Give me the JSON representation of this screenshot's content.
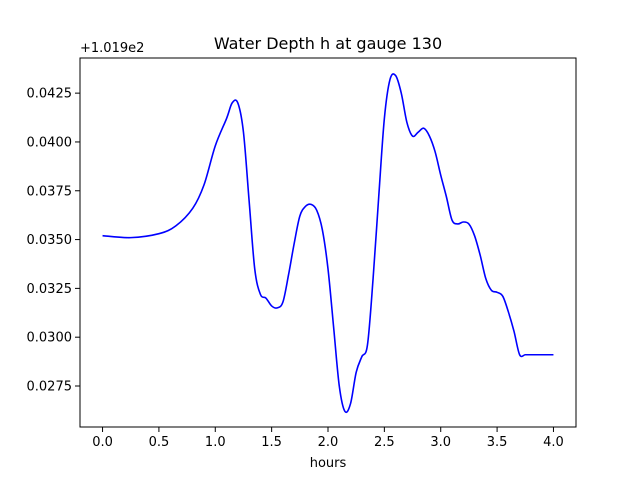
{
  "chart_data": {
    "type": "line",
    "title": "Water Depth h at gauge 130",
    "xlabel": "hours",
    "ylabel": "",
    "y_offset_label": "+1.019e2",
    "y_offset": 101.9,
    "xlim": [
      -0.2,
      4.2
    ],
    "ylim": [
      0.0254,
      0.0443
    ],
    "x_ticks": [
      0.0,
      0.5,
      1.0,
      1.5,
      2.0,
      2.5,
      3.0,
      3.5,
      4.0
    ],
    "x_tick_labels": [
      "0.0",
      "0.5",
      "1.0",
      "1.5",
      "2.0",
      "2.5",
      "3.0",
      "3.5",
      "4.0"
    ],
    "y_ticks": [
      0.0275,
      0.03,
      0.0325,
      0.035,
      0.0375,
      0.04,
      0.0425
    ],
    "y_tick_labels": [
      "0.0275",
      "0.0300",
      "0.0325",
      "0.0350",
      "0.0375",
      "0.0400",
      "0.0425"
    ],
    "grid": false,
    "series": [
      {
        "color": "#0000ff",
        "x": [
          0.0,
          0.25,
          0.5,
          0.65,
          0.8,
          0.9,
          1.0,
          1.1,
          1.15,
          1.2,
          1.25,
          1.3,
          1.35,
          1.4,
          1.45,
          1.5,
          1.55,
          1.6,
          1.65,
          1.7,
          1.75,
          1.8,
          1.85,
          1.9,
          1.95,
          2.0,
          2.05,
          2.1,
          2.15,
          2.2,
          2.25,
          2.3,
          2.35,
          2.4,
          2.45,
          2.5,
          2.55,
          2.6,
          2.65,
          2.7,
          2.75,
          2.8,
          2.85,
          2.9,
          2.95,
          3.0,
          3.05,
          3.1,
          3.15,
          3.2,
          3.25,
          3.3,
          3.35,
          3.4,
          3.45,
          3.5,
          3.55,
          3.6,
          3.65,
          3.7,
          3.75,
          3.8,
          3.85,
          3.9,
          3.95,
          4.0
        ],
        "y": [
          0.0352,
          0.0351,
          0.0353,
          0.0357,
          0.0366,
          0.0378,
          0.0398,
          0.0412,
          0.042,
          0.042,
          0.0405,
          0.037,
          0.0335,
          0.0322,
          0.032,
          0.0316,
          0.0315,
          0.0318,
          0.0332,
          0.0348,
          0.0362,
          0.0367,
          0.0368,
          0.0365,
          0.0355,
          0.0335,
          0.0305,
          0.0275,
          0.0262,
          0.0266,
          0.0282,
          0.029,
          0.0296,
          0.033,
          0.0372,
          0.0412,
          0.0432,
          0.0434,
          0.0425,
          0.041,
          0.0403,
          0.0405,
          0.0407,
          0.0403,
          0.0395,
          0.0383,
          0.0372,
          0.036,
          0.0358,
          0.0359,
          0.0358,
          0.0352,
          0.0342,
          0.033,
          0.0324,
          0.0323,
          0.0321,
          0.0313,
          0.0303,
          0.0291,
          0.0291,
          0.0291,
          0.0291,
          0.0291,
          0.0291,
          0.0291
        ]
      }
    ]
  }
}
